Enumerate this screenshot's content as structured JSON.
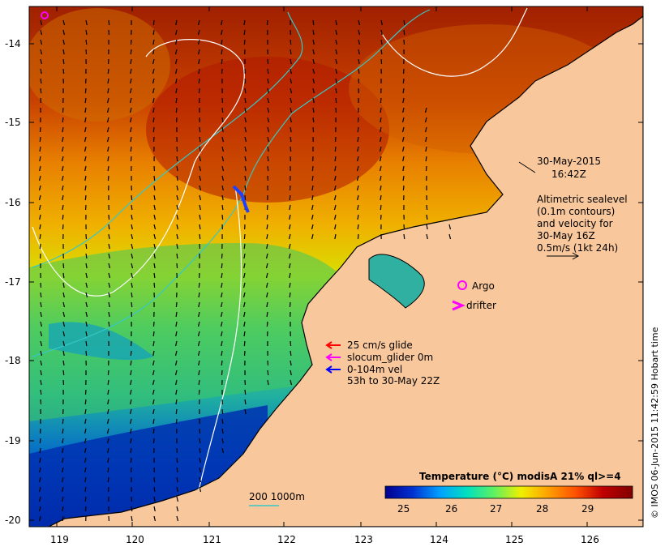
{
  "map": {
    "date": "30-May-2015",
    "time": "16:42Z",
    "altimetry_lines": [
      "Altimetric sealevel",
      "(0.1m contours)",
      "and velocity for",
      "30-May 16Z",
      "0.5m/s (1kt 24h)"
    ],
    "argo_label": "Argo",
    "drifter_label": "drifter",
    "legend_glide": "25 cm/s glide",
    "legend_slocum": "slocum_glider 0m",
    "legend_vel": "0-104m vel",
    "legend_time": "53h to 30-May 22Z",
    "contour_label": "200  1000m",
    "colorbar_title": "Temperature (°C) modisA 21% ql>=4",
    "colorbar_ticks": [
      "25",
      "26",
      "27",
      "28",
      "29"
    ],
    "credit": "© IMOS 06-Jun-2015 11:42:59 Hobart time",
    "lat_labels": [
      "-14",
      "-15",
      "-16",
      "-17",
      "-18",
      "-19",
      "-20"
    ],
    "lon_labels": [
      "119",
      "120",
      "121",
      "122",
      "123",
      "124",
      "125",
      "126"
    ],
    "colors": {
      "land": "#f9c79c",
      "argo": "#ff00ff",
      "drifter": "#ff00ff",
      "glide": "#ff0000",
      "slocum": "#ff00ff",
      "vel": "#0000ff",
      "bathy": "#36c8c8",
      "altimetry": "#ffffff"
    },
    "colorbar_colors": [
      "#000090",
      "#0030d0",
      "#00a0ff",
      "#00e0c0",
      "#60f060",
      "#f0f000",
      "#ffa000",
      "#ff5000",
      "#c00000",
      "#800000"
    ]
  }
}
